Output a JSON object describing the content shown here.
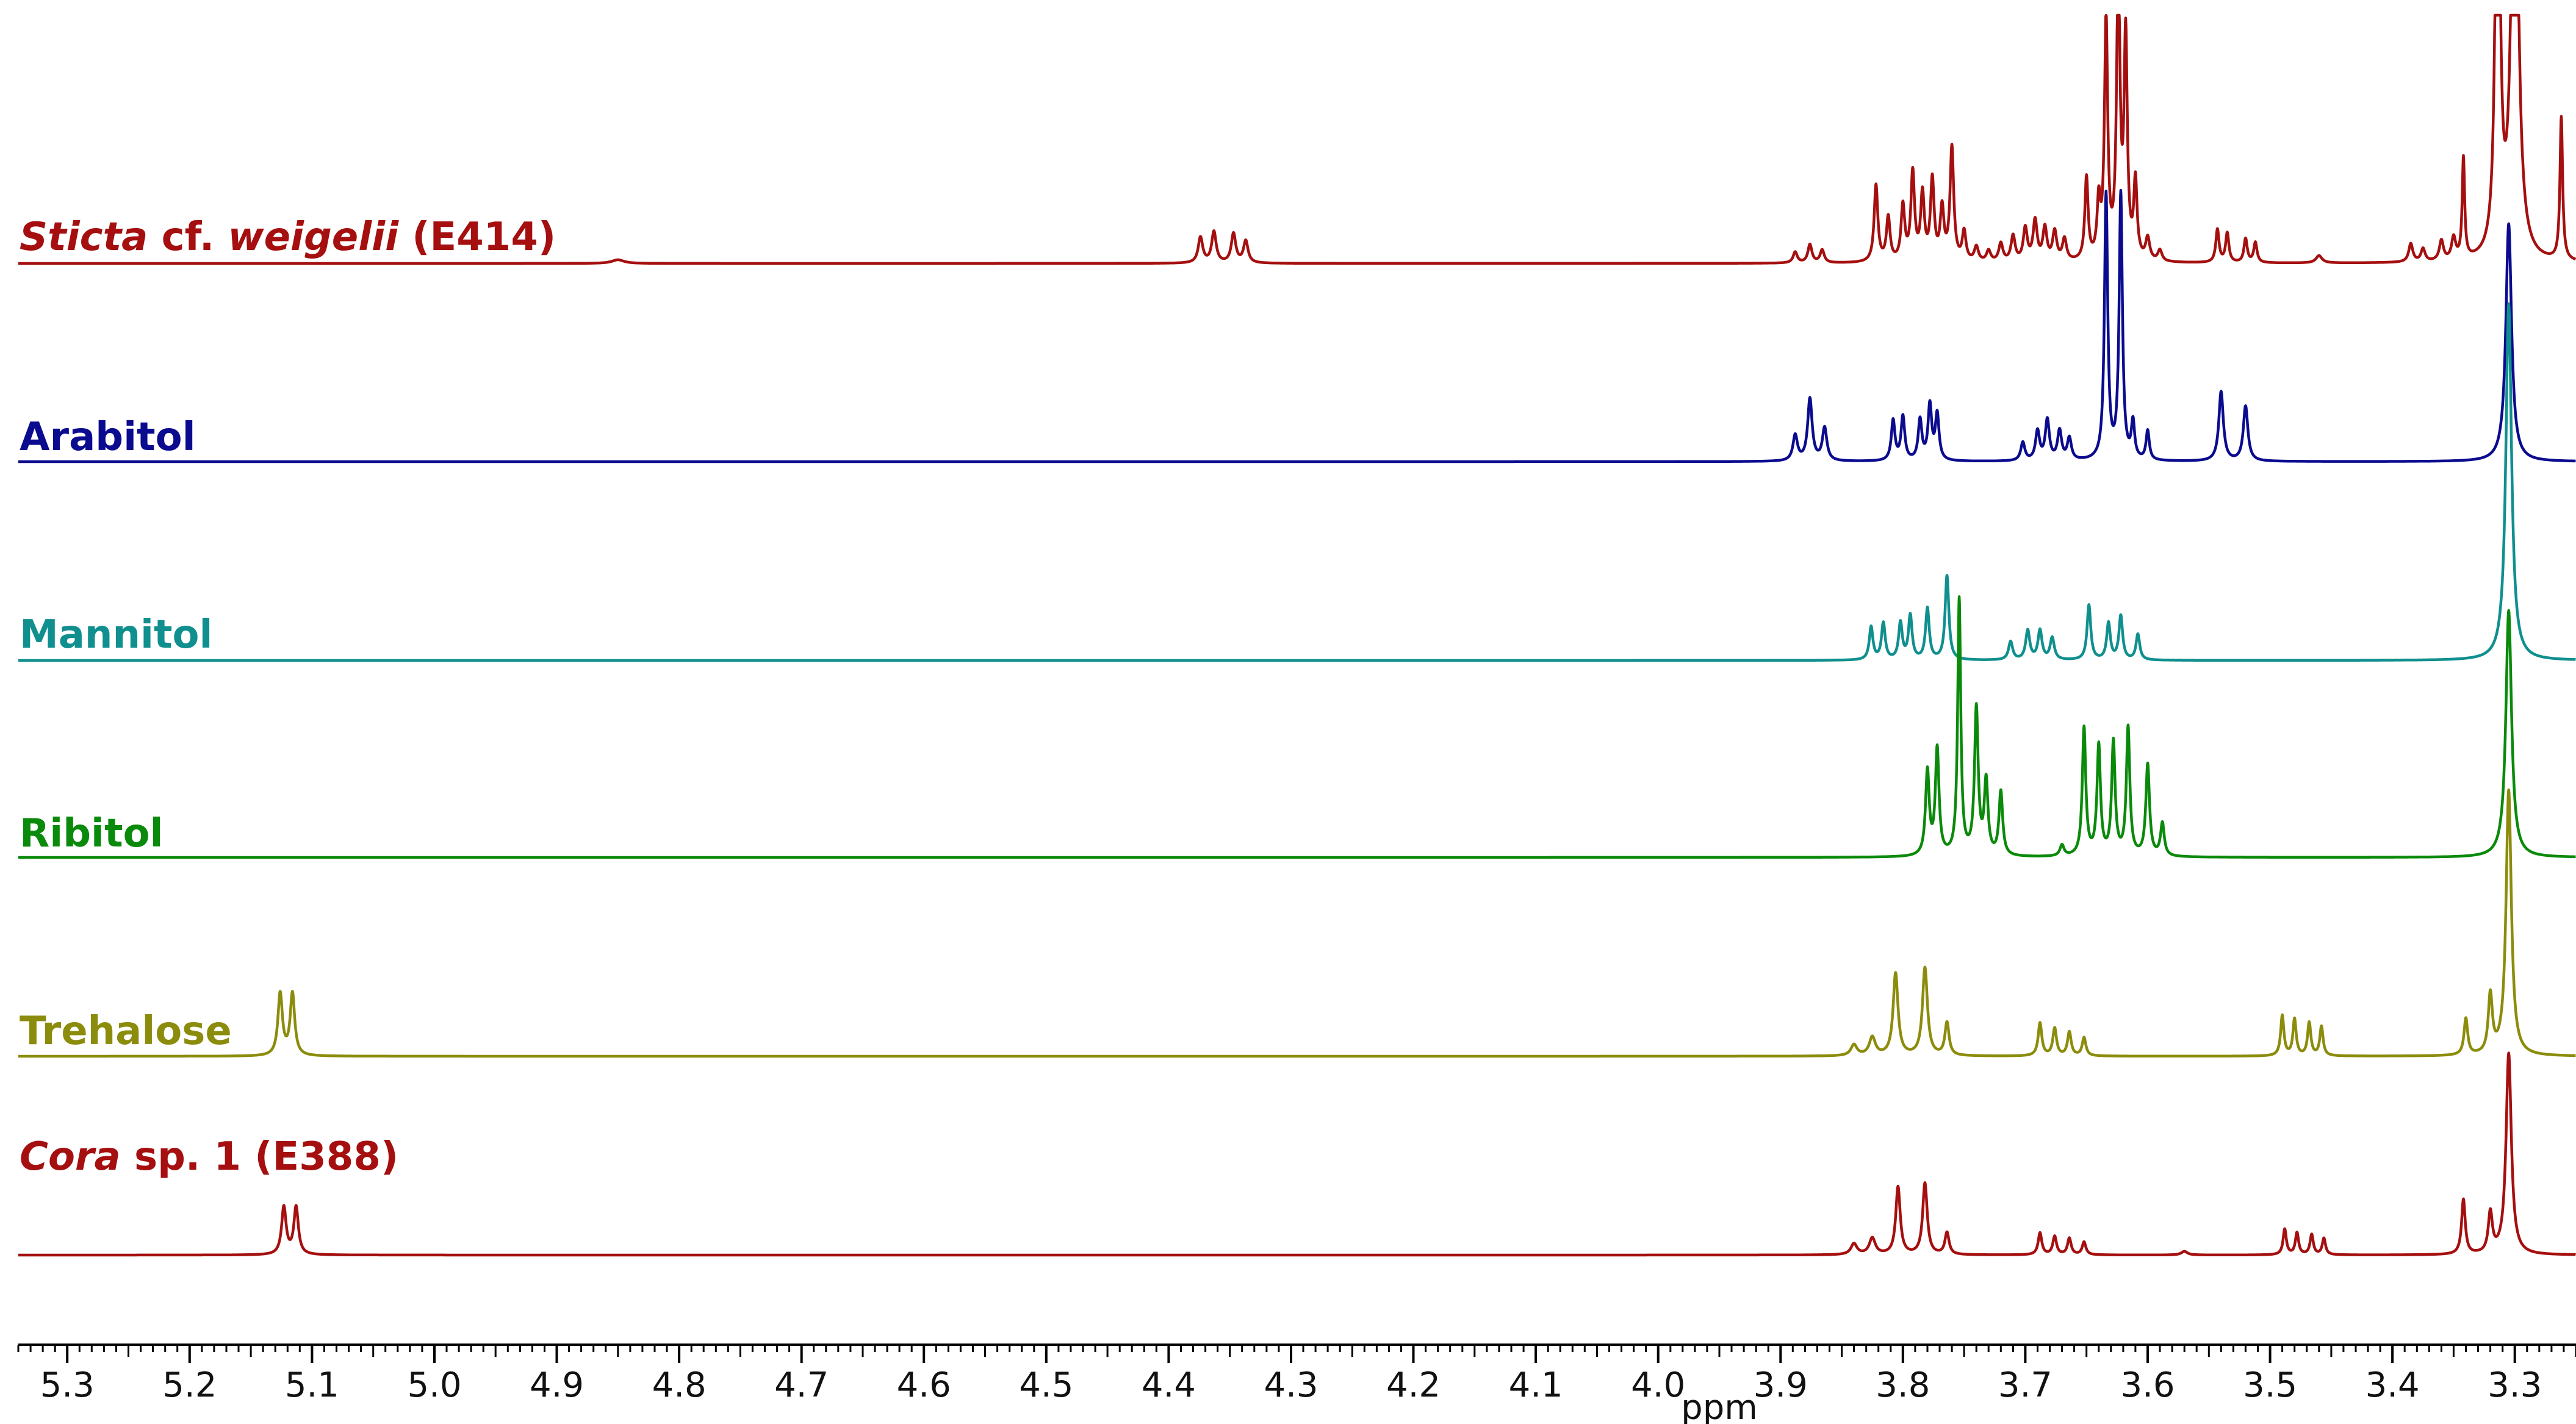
{
  "chart_data": {
    "type": "line",
    "title": "",
    "xlabel": "ppm",
    "ylabel": "",
    "xlim": [
      5.34,
      3.25
    ],
    "x_reversed": true,
    "grid": false,
    "x_ticks": [
      "5.3",
      "5.2",
      "5.1",
      "5.0",
      "4.9",
      "4.8",
      "4.7",
      "4.6",
      "4.5",
      "4.4",
      "4.3",
      "4.2",
      "4.1",
      "4.0",
      "3.9",
      "3.8",
      "3.7",
      "3.6",
      "3.5",
      "3.4",
      "3.3"
    ],
    "series": [
      {
        "name_parts": [
          {
            "text": "Sticta",
            "italic": true
          },
          {
            "text": " cf. ",
            "italic": false
          },
          {
            "text": "weigelii",
            "italic": true
          },
          {
            "text": " (E414)",
            "italic": false
          }
        ],
        "color": "#a50f0f",
        "peaks": [
          [
            4.85,
            0.02,
            0.006
          ],
          [
            4.374,
            0.14,
            0.0022
          ],
          [
            4.363,
            0.17,
            0.0022
          ],
          [
            4.347,
            0.16,
            0.0022
          ],
          [
            4.337,
            0.12,
            0.0022
          ],
          [
            3.888,
            0.06,
            0.002
          ],
          [
            3.876,
            0.1,
            0.002
          ],
          [
            3.866,
            0.07,
            0.002
          ],
          [
            3.822,
            0.42,
            0.0018
          ],
          [
            3.812,
            0.24,
            0.0018
          ],
          [
            3.8,
            0.3,
            0.0018
          ],
          [
            3.792,
            0.48,
            0.0018
          ],
          [
            3.784,
            0.36,
            0.0018
          ],
          [
            3.776,
            0.44,
            0.0018
          ],
          [
            3.768,
            0.28,
            0.0018
          ],
          [
            3.76,
            0.62,
            0.0018
          ],
          [
            3.75,
            0.16,
            0.0018
          ],
          [
            3.74,
            0.08,
            0.002
          ],
          [
            3.73,
            0.06,
            0.002
          ],
          [
            3.72,
            0.1,
            0.002
          ],
          [
            3.71,
            0.14,
            0.002
          ],
          [
            3.7,
            0.18,
            0.002
          ],
          [
            3.692,
            0.22,
            0.002
          ],
          [
            3.684,
            0.18,
            0.002
          ],
          [
            3.676,
            0.16,
            0.002
          ],
          [
            3.668,
            0.12,
            0.002
          ],
          [
            3.65,
            0.45,
            0.0016
          ],
          [
            3.64,
            0.3,
            0.0016
          ],
          [
            3.634,
            1.3,
            0.0016
          ],
          [
            3.624,
            1.6,
            0.0016
          ],
          [
            3.618,
            1.2,
            0.0016
          ],
          [
            3.61,
            0.42,
            0.0016
          ],
          [
            3.6,
            0.12,
            0.002
          ],
          [
            3.59,
            0.06,
            0.002
          ],
          [
            3.543,
            0.18,
            0.0016
          ],
          [
            3.535,
            0.16,
            0.0016
          ],
          [
            3.52,
            0.13,
            0.0016
          ],
          [
            3.512,
            0.11,
            0.0016
          ],
          [
            3.46,
            0.04,
            0.003
          ],
          [
            3.385,
            0.1,
            0.002
          ],
          [
            3.375,
            0.07,
            0.002
          ],
          [
            3.36,
            0.11,
            0.002
          ],
          [
            3.35,
            0.12,
            0.002
          ],
          [
            3.342,
            0.55,
            0.0012
          ],
          [
            3.314,
            3.0,
            0.002
          ],
          [
            3.3,
            3.0,
            0.003
          ],
          [
            3.262,
            0.78,
            0.0013
          ]
        ]
      },
      {
        "name": "Arabitol",
        "color": "#0b0b8f",
        "peaks": [
          [
            3.888,
            0.14,
            0.0022
          ],
          [
            3.876,
            0.34,
            0.0022
          ],
          [
            3.864,
            0.18,
            0.0022
          ],
          [
            3.808,
            0.22,
            0.0018
          ],
          [
            3.8,
            0.24,
            0.0018
          ],
          [
            3.786,
            0.22,
            0.0018
          ],
          [
            3.778,
            0.3,
            0.0018
          ],
          [
            3.772,
            0.25,
            0.0018
          ],
          [
            3.702,
            0.1,
            0.002
          ],
          [
            3.69,
            0.16,
            0.002
          ],
          [
            3.682,
            0.22,
            0.002
          ],
          [
            3.672,
            0.16,
            0.002
          ],
          [
            3.664,
            0.12,
            0.002
          ],
          [
            3.634,
            1.45,
            0.0016
          ],
          [
            3.622,
            1.45,
            0.0016
          ],
          [
            3.612,
            0.2,
            0.0016
          ],
          [
            3.6,
            0.16,
            0.0016
          ],
          [
            3.54,
            0.38,
            0.0022
          ],
          [
            3.52,
            0.3,
            0.0022
          ],
          [
            3.305,
            1.3,
            0.0028
          ]
        ]
      },
      {
        "name": "Mannitol",
        "color": "#108f8f",
        "peaks": [
          [
            3.826,
            0.18,
            0.0018
          ],
          [
            3.816,
            0.2,
            0.0018
          ],
          [
            3.802,
            0.2,
            0.0018
          ],
          [
            3.794,
            0.24,
            0.0018
          ],
          [
            3.78,
            0.28,
            0.0018
          ],
          [
            3.764,
            0.46,
            0.0018
          ],
          [
            3.712,
            0.1,
            0.002
          ],
          [
            3.698,
            0.16,
            0.002
          ],
          [
            3.688,
            0.16,
            0.002
          ],
          [
            3.678,
            0.12,
            0.002
          ],
          [
            3.648,
            0.3,
            0.0018
          ],
          [
            3.632,
            0.2,
            0.0018
          ],
          [
            3.622,
            0.24,
            0.0018
          ],
          [
            3.608,
            0.14,
            0.0018
          ],
          [
            3.305,
            1.95,
            0.0028
          ]
        ]
      },
      {
        "name": "Ribitol",
        "color": "#0a8a0a",
        "peaks": [
          [
            3.78,
            0.46,
            0.0018
          ],
          [
            3.772,
            0.58,
            0.0018
          ],
          [
            3.754,
            1.4,
            0.0015
          ],
          [
            3.74,
            0.8,
            0.0018
          ],
          [
            3.732,
            0.4,
            0.0018
          ],
          [
            3.72,
            0.35,
            0.0018
          ],
          [
            3.67,
            0.06,
            0.002
          ],
          [
            3.652,
            0.7,
            0.0017
          ],
          [
            3.64,
            0.6,
            0.0017
          ],
          [
            3.628,
            0.62,
            0.0017
          ],
          [
            3.616,
            0.7,
            0.0017
          ],
          [
            3.6,
            0.5,
            0.0018
          ],
          [
            3.588,
            0.18,
            0.0018
          ],
          [
            3.305,
            1.35,
            0.0028
          ]
        ]
      },
      {
        "name": "Trehalose",
        "color": "#8c8c0c",
        "peaks": [
          [
            5.126,
            0.34,
            0.0022
          ],
          [
            5.116,
            0.34,
            0.0022
          ],
          [
            3.84,
            0.06,
            0.003
          ],
          [
            3.825,
            0.1,
            0.003
          ],
          [
            3.806,
            0.45,
            0.0024
          ],
          [
            3.782,
            0.48,
            0.0024
          ],
          [
            3.764,
            0.18,
            0.002
          ],
          [
            3.688,
            0.18,
            0.0018
          ],
          [
            3.676,
            0.15,
            0.0018
          ],
          [
            3.664,
            0.13,
            0.0018
          ],
          [
            3.652,
            0.1,
            0.0018
          ],
          [
            3.49,
            0.22,
            0.0016
          ],
          [
            3.48,
            0.2,
            0.0016
          ],
          [
            3.468,
            0.18,
            0.0016
          ],
          [
            3.458,
            0.16,
            0.0016
          ],
          [
            3.34,
            0.2,
            0.0018
          ],
          [
            3.32,
            0.32,
            0.002
          ],
          [
            3.305,
            1.45,
            0.0026
          ]
        ]
      },
      {
        "name_parts": [
          {
            "text": "Cora",
            "italic": true
          },
          {
            "text": " sp. 1 (E388)",
            "italic": false
          }
        ],
        "color": "#a50f0f",
        "peaks": [
          [
            5.123,
            0.26,
            0.0022
          ],
          [
            5.113,
            0.26,
            0.0022
          ],
          [
            3.84,
            0.06,
            0.003
          ],
          [
            3.825,
            0.09,
            0.003
          ],
          [
            3.804,
            0.37,
            0.0022
          ],
          [
            3.782,
            0.39,
            0.0022
          ],
          [
            3.764,
            0.12,
            0.002
          ],
          [
            3.688,
            0.12,
            0.0018
          ],
          [
            3.676,
            0.1,
            0.0018
          ],
          [
            3.664,
            0.09,
            0.0018
          ],
          [
            3.652,
            0.07,
            0.0018
          ],
          [
            3.57,
            0.02,
            0.003
          ],
          [
            3.488,
            0.14,
            0.0016
          ],
          [
            3.478,
            0.12,
            0.0016
          ],
          [
            3.466,
            0.11,
            0.0016
          ],
          [
            3.456,
            0.09,
            0.0016
          ],
          [
            3.342,
            0.3,
            0.0018
          ],
          [
            3.32,
            0.22,
            0.002
          ],
          [
            3.305,
            1.1,
            0.0026
          ]
        ]
      }
    ]
  }
}
